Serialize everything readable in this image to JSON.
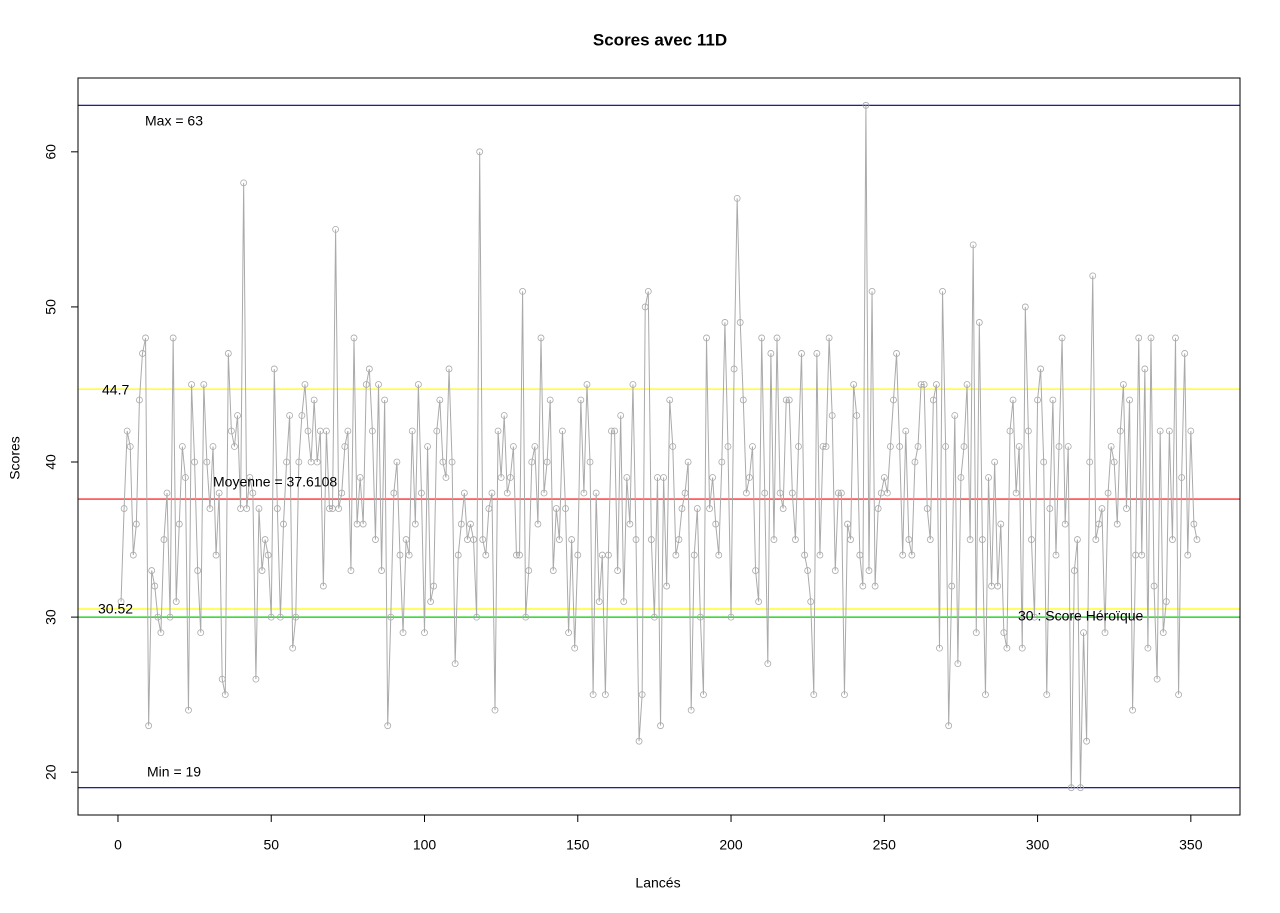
{
  "chart_data": {
    "type": "line",
    "title": "Scores avec 11D",
    "x_label": "Lancés",
    "y_label": "Scores",
    "xlim": [
      -13.04,
      366.04
    ],
    "ylim": [
      17.24,
      64.76
    ],
    "xticks": [
      0,
      50,
      100,
      150,
      200,
      250,
      300,
      350
    ],
    "yticks": [
      20,
      30,
      40,
      50,
      60
    ],
    "color": "#aaaaaa",
    "x": [
      1,
      2,
      3,
      4,
      5,
      6,
      7,
      8,
      9,
      10,
      11,
      12,
      13,
      14,
      15,
      16,
      17,
      18,
      19,
      20,
      21,
      22,
      23,
      24,
      25,
      26,
      27,
      28,
      29,
      30,
      31,
      32,
      33,
      34,
      35,
      36,
      37,
      38,
      39,
      40,
      41,
      42,
      43,
      44,
      45,
      46,
      47,
      48,
      49,
      50,
      51,
      52,
      53,
      54,
      55,
      56,
      57,
      58,
      59,
      60,
      61,
      62,
      63,
      64,
      65,
      66,
      67,
      68,
      69,
      70,
      71,
      72,
      73,
      74,
      75,
      76,
      77,
      78,
      79,
      80,
      81,
      82,
      83,
      84,
      85,
      86,
      87,
      88,
      89,
      90,
      91,
      92,
      93,
      94,
      95,
      96,
      97,
      98,
      99,
      100,
      101,
      102,
      103,
      104,
      105,
      106,
      107,
      108,
      109,
      110,
      111,
      112,
      113,
      114,
      115,
      116,
      117,
      118,
      119,
      120,
      121,
      122,
      123,
      124,
      125,
      126,
      127,
      128,
      129,
      130,
      131,
      132,
      133,
      134,
      135,
      136,
      137,
      138,
      139,
      140,
      141,
      142,
      143,
      144,
      145,
      146,
      147,
      148,
      149,
      150,
      151,
      152,
      153,
      154,
      155,
      156,
      157,
      158,
      159,
      160,
      161,
      162,
      163,
      164,
      165,
      166,
      167,
      168,
      169,
      170,
      171,
      172,
      173,
      174,
      175,
      176,
      177,
      178,
      179,
      180,
      181,
      182,
      183,
      184,
      185,
      186,
      187,
      188,
      189,
      190,
      191,
      192,
      193,
      194,
      195,
      196,
      197,
      198,
      199,
      200,
      201,
      202,
      203,
      204,
      205,
      206,
      207,
      208,
      209,
      210,
      211,
      212,
      213,
      214,
      215,
      216,
      217,
      218,
      219,
      220,
      221,
      222,
      223,
      224,
      225,
      226,
      227,
      228,
      229,
      230,
      231,
      232,
      233,
      234,
      235,
      236,
      237,
      238,
      239,
      240,
      241,
      242,
      243,
      244,
      245,
      246,
      247,
      248,
      249,
      250,
      251,
      252,
      253,
      254,
      255,
      256,
      257,
      258,
      259,
      260,
      261,
      262,
      263,
      264,
      265,
      266,
      267,
      268,
      269,
      270,
      271,
      272,
      273,
      274,
      275,
      276,
      277,
      278,
      279,
      280,
      281,
      282,
      283,
      284,
      285,
      286,
      287,
      288,
      289,
      290,
      291,
      292,
      293,
      294,
      295,
      296,
      297,
      298,
      299,
      300,
      301,
      302,
      303,
      304,
      305,
      306,
      307,
      308,
      309,
      310,
      311,
      312,
      313,
      314,
      315,
      316,
      317,
      318,
      319,
      320,
      321,
      322,
      323,
      324,
      325,
      326,
      327,
      328,
      329,
      330,
      331,
      332,
      333,
      334,
      335,
      336,
      337,
      338,
      339,
      340,
      341,
      342,
      343,
      344,
      345,
      346,
      347,
      348,
      349,
      350,
      351,
      352
    ],
    "values": [
      31,
      37,
      42,
      41,
      34,
      36,
      44,
      47,
      48,
      23,
      33,
      32,
      30,
      29,
      35,
      38,
      30,
      48,
      31,
      36,
      41,
      39,
      24,
      45,
      40,
      33,
      29,
      45,
      40,
      37,
      41,
      34,
      38,
      26,
      25,
      47,
      42,
      41,
      43,
      37,
      58,
      37,
      39,
      38,
      26,
      37,
      33,
      35,
      34,
      30,
      46,
      37,
      30,
      36,
      40,
      43,
      28,
      30,
      40,
      43,
      45,
      42,
      40,
      44,
      40,
      42,
      32,
      42,
      37,
      37,
      55,
      37,
      38,
      41,
      42,
      33,
      48,
      36,
      39,
      36,
      45,
      46,
      42,
      35,
      45,
      33,
      44,
      23,
      30,
      38,
      40,
      34,
      29,
      35,
      34,
      42,
      36,
      45,
      38,
      29,
      41,
      31,
      32,
      42,
      44,
      40,
      39,
      46,
      40,
      27,
      34,
      36,
      38,
      35,
      36,
      35,
      30,
      60,
      35,
      34,
      37,
      38,
      24,
      42,
      39,
      43,
      38,
      39,
      41,
      34,
      34,
      51,
      30,
      33,
      40,
      41,
      36,
      48,
      38,
      40,
      44,
      33,
      37,
      35,
      42,
      37,
      29,
      35,
      28,
      34,
      44,
      38,
      45,
      40,
      25,
      38,
      31,
      34,
      25,
      34,
      42,
      42,
      33,
      43,
      31,
      39,
      36,
      45,
      35,
      22,
      25,
      50,
      51,
      35,
      30,
      39,
      23,
      39,
      32,
      44,
      41,
      34,
      35,
      37,
      38,
      40,
      24,
      34,
      37,
      30,
      25,
      48,
      37,
      39,
      36,
      34,
      40,
      49,
      41,
      30,
      46,
      57,
      49,
      44,
      38,
      39,
      41,
      33,
      31,
      48,
      38,
      27,
      47,
      35,
      48,
      38,
      37,
      44,
      44,
      38,
      35,
      41,
      47,
      34,
      33,
      31,
      25,
      47,
      34,
      41,
      41,
      48,
      43,
      33,
      38,
      38,
      25,
      36,
      35,
      45,
      43,
      34,
      32,
      63,
      33,
      51,
      32,
      37,
      38,
      39,
      38,
      41,
      44,
      47,
      41,
      34,
      42,
      35,
      34,
      40,
      41,
      45,
      45,
      37,
      35,
      44,
      45,
      28,
      51,
      41,
      23,
      32,
      43,
      27,
      39,
      41,
      45,
      35,
      54,
      29,
      49,
      35,
      25,
      39,
      32,
      40,
      32,
      36,
      29,
      28,
      42,
      44,
      38,
      41,
      28,
      50,
      42,
      35,
      30,
      44,
      46,
      40,
      25,
      37,
      44,
      34,
      41,
      48,
      36,
      41,
      19,
      33,
      35,
      19,
      29,
      22,
      40,
      52,
      35,
      36,
      37,
      29,
      38,
      41,
      40,
      36,
      42,
      45,
      37,
      44,
      24,
      34,
      48,
      34,
      46,
      28,
      48,
      32,
      26,
      42,
      29,
      31,
      42,
      35,
      48,
      25,
      39,
      47,
      34,
      42,
      36,
      35
    ],
    "hlines": [
      {
        "value": 63,
        "color": "#000080",
        "label": "Max =  63"
      },
      {
        "value": 19,
        "color": "#000080",
        "label": "Min =  19"
      },
      {
        "value": 37.6108,
        "color": "#ff0000",
        "label": "Moyenne =  37.6108"
      },
      {
        "value": 44.7,
        "color": "#ffff00",
        "label": "44.7"
      },
      {
        "value": 30.52,
        "color": "#ffff00",
        "label": "30.52"
      },
      {
        "value": 30,
        "color": "#00cd00",
        "label": "30 : Score Héroïque"
      }
    ]
  }
}
